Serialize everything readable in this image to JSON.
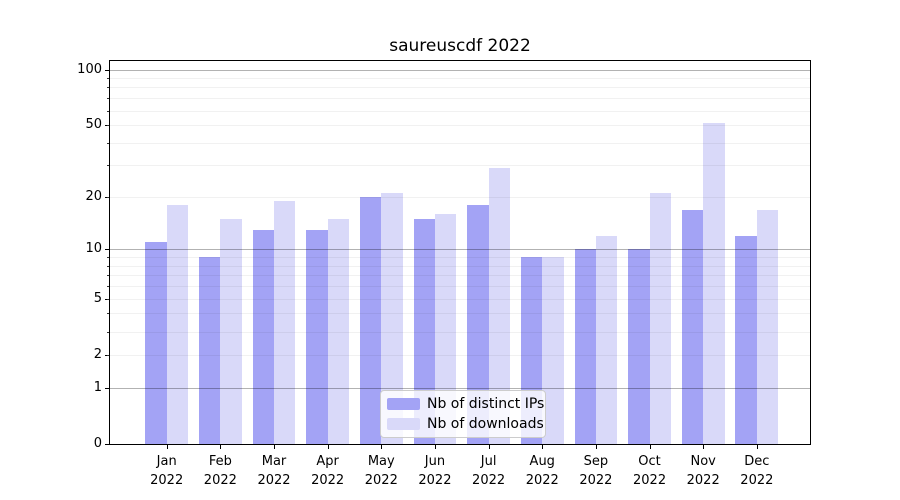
{
  "title": "saureuscdf 2022",
  "colors": {
    "ips": "#a3a3f5",
    "downloads": "#d9d9f9",
    "grid_reference": "#b3b3b3",
    "grid_minor": "#ececec",
    "axis": "#000000",
    "legend_border": "#cccccc"
  },
  "legend": {
    "items": [
      {
        "label": "Nb of distinct IPs",
        "color_key": "ips"
      },
      {
        "label": "Nb of downloads",
        "color_key": "downloads"
      }
    ]
  },
  "y_axis": {
    "tick_labels": [
      "100",
      "50",
      "20",
      "10",
      "5",
      "2",
      "1",
      "0"
    ],
    "tick_values": [
      100,
      50,
      20,
      10,
      5,
      2,
      1,
      0
    ],
    "minor_grid_values": [
      2,
      3,
      4,
      5,
      6,
      7,
      8,
      9,
      20,
      30,
      40,
      50,
      60,
      70,
      80,
      90
    ],
    "reference_line_values": [
      1,
      10,
      100
    ]
  },
  "x_axis": {
    "months": [
      "Jan",
      "Feb",
      "Mar",
      "Apr",
      "May",
      "Jun",
      "Jul",
      "Aug",
      "Sep",
      "Oct",
      "Nov",
      "Dec"
    ],
    "year": "2022"
  },
  "chart_data": {
    "type": "bar",
    "title": "saureuscdf 2022",
    "categories": [
      "Jan 2022",
      "Feb 2022",
      "Mar 2022",
      "Apr 2022",
      "May 2022",
      "Jun 2022",
      "Jul 2022",
      "Aug 2022",
      "Sep 2022",
      "Oct 2022",
      "Nov 2022",
      "Dec 2022"
    ],
    "series": [
      {
        "name": "Nb of distinct IPs",
        "values": [
          11,
          9,
          13,
          13,
          20,
          15,
          18,
          9,
          10,
          10,
          17,
          12
        ]
      },
      {
        "name": "Nb of downloads",
        "values": [
          18,
          15,
          19,
          15,
          21,
          16,
          29,
          9,
          12,
          21,
          51,
          17
        ]
      }
    ],
    "xlabel": "",
    "ylabel": "",
    "yscale": "log1p",
    "ylim": [
      0,
      111
    ],
    "y_ticks": [
      0,
      1,
      2,
      5,
      10,
      20,
      50,
      100
    ],
    "grid": true,
    "legend_position": "lower center"
  }
}
